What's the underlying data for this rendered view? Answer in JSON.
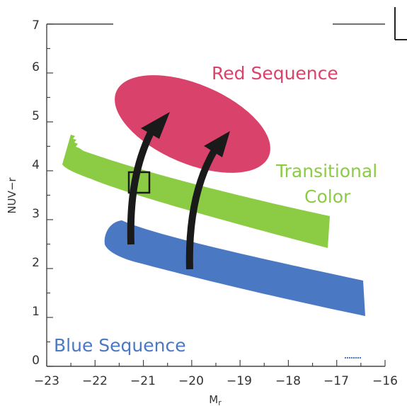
{
  "axes": {
    "x_ticks": [
      "−23",
      "−22",
      "−21",
      "−20",
      "−19",
      "−18",
      "−17",
      "−16"
    ],
    "y_ticks": [
      "0",
      "1",
      "2",
      "3",
      "4",
      "5",
      "6",
      "7"
    ],
    "xlabel": "Mr",
    "ylabel": "NUV−r",
    "xlim": [
      -23,
      -16
    ],
    "ylim": [
      0,
      7
    ]
  },
  "regions": {
    "red": {
      "label": "Red Sequence",
      "color": "#d9436b"
    },
    "green": {
      "label_line1": "Transitional",
      "label_line2": "Color",
      "color": "#8ccc44"
    },
    "blue": {
      "label": "Blue Sequence",
      "color": "#4a78c2"
    }
  },
  "arrows": {
    "color": "#1a1a1a"
  },
  "marker": {
    "shape": "square",
    "color": "#1a1a1a"
  }
}
